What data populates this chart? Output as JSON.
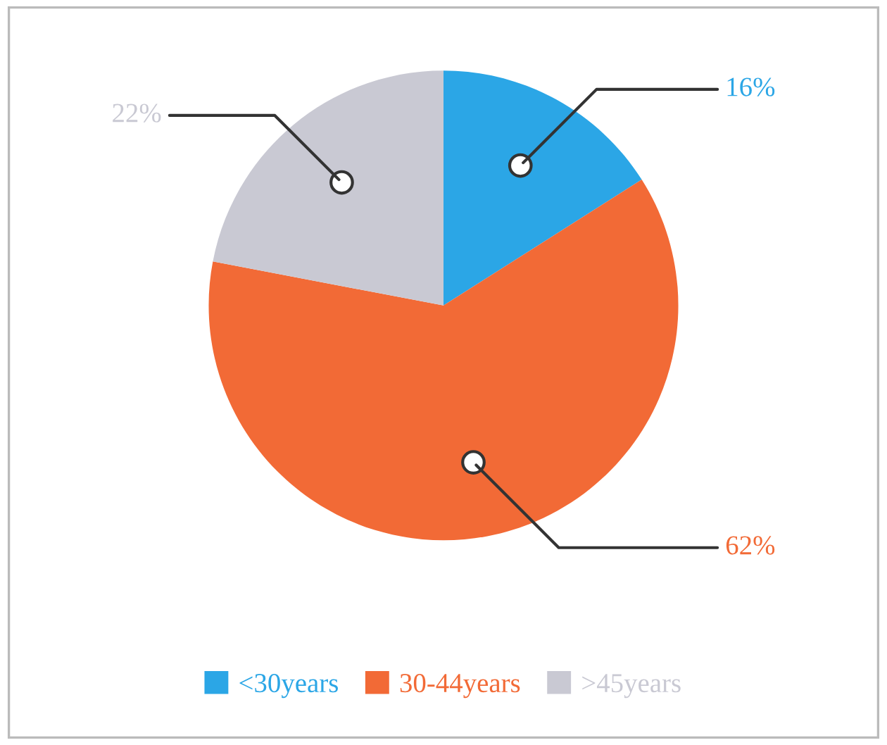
{
  "chart_data": {
    "type": "pie",
    "categories": [
      "<30years",
      "30-44years",
      ">45years"
    ],
    "values": [
      16,
      62,
      22
    ],
    "colors": [
      "#2ba6e6",
      "#f26a36",
      "#c9c9d3"
    ],
    "value_labels": [
      "16%",
      "62%",
      "22%"
    ],
    "legend": "bottom"
  }
}
